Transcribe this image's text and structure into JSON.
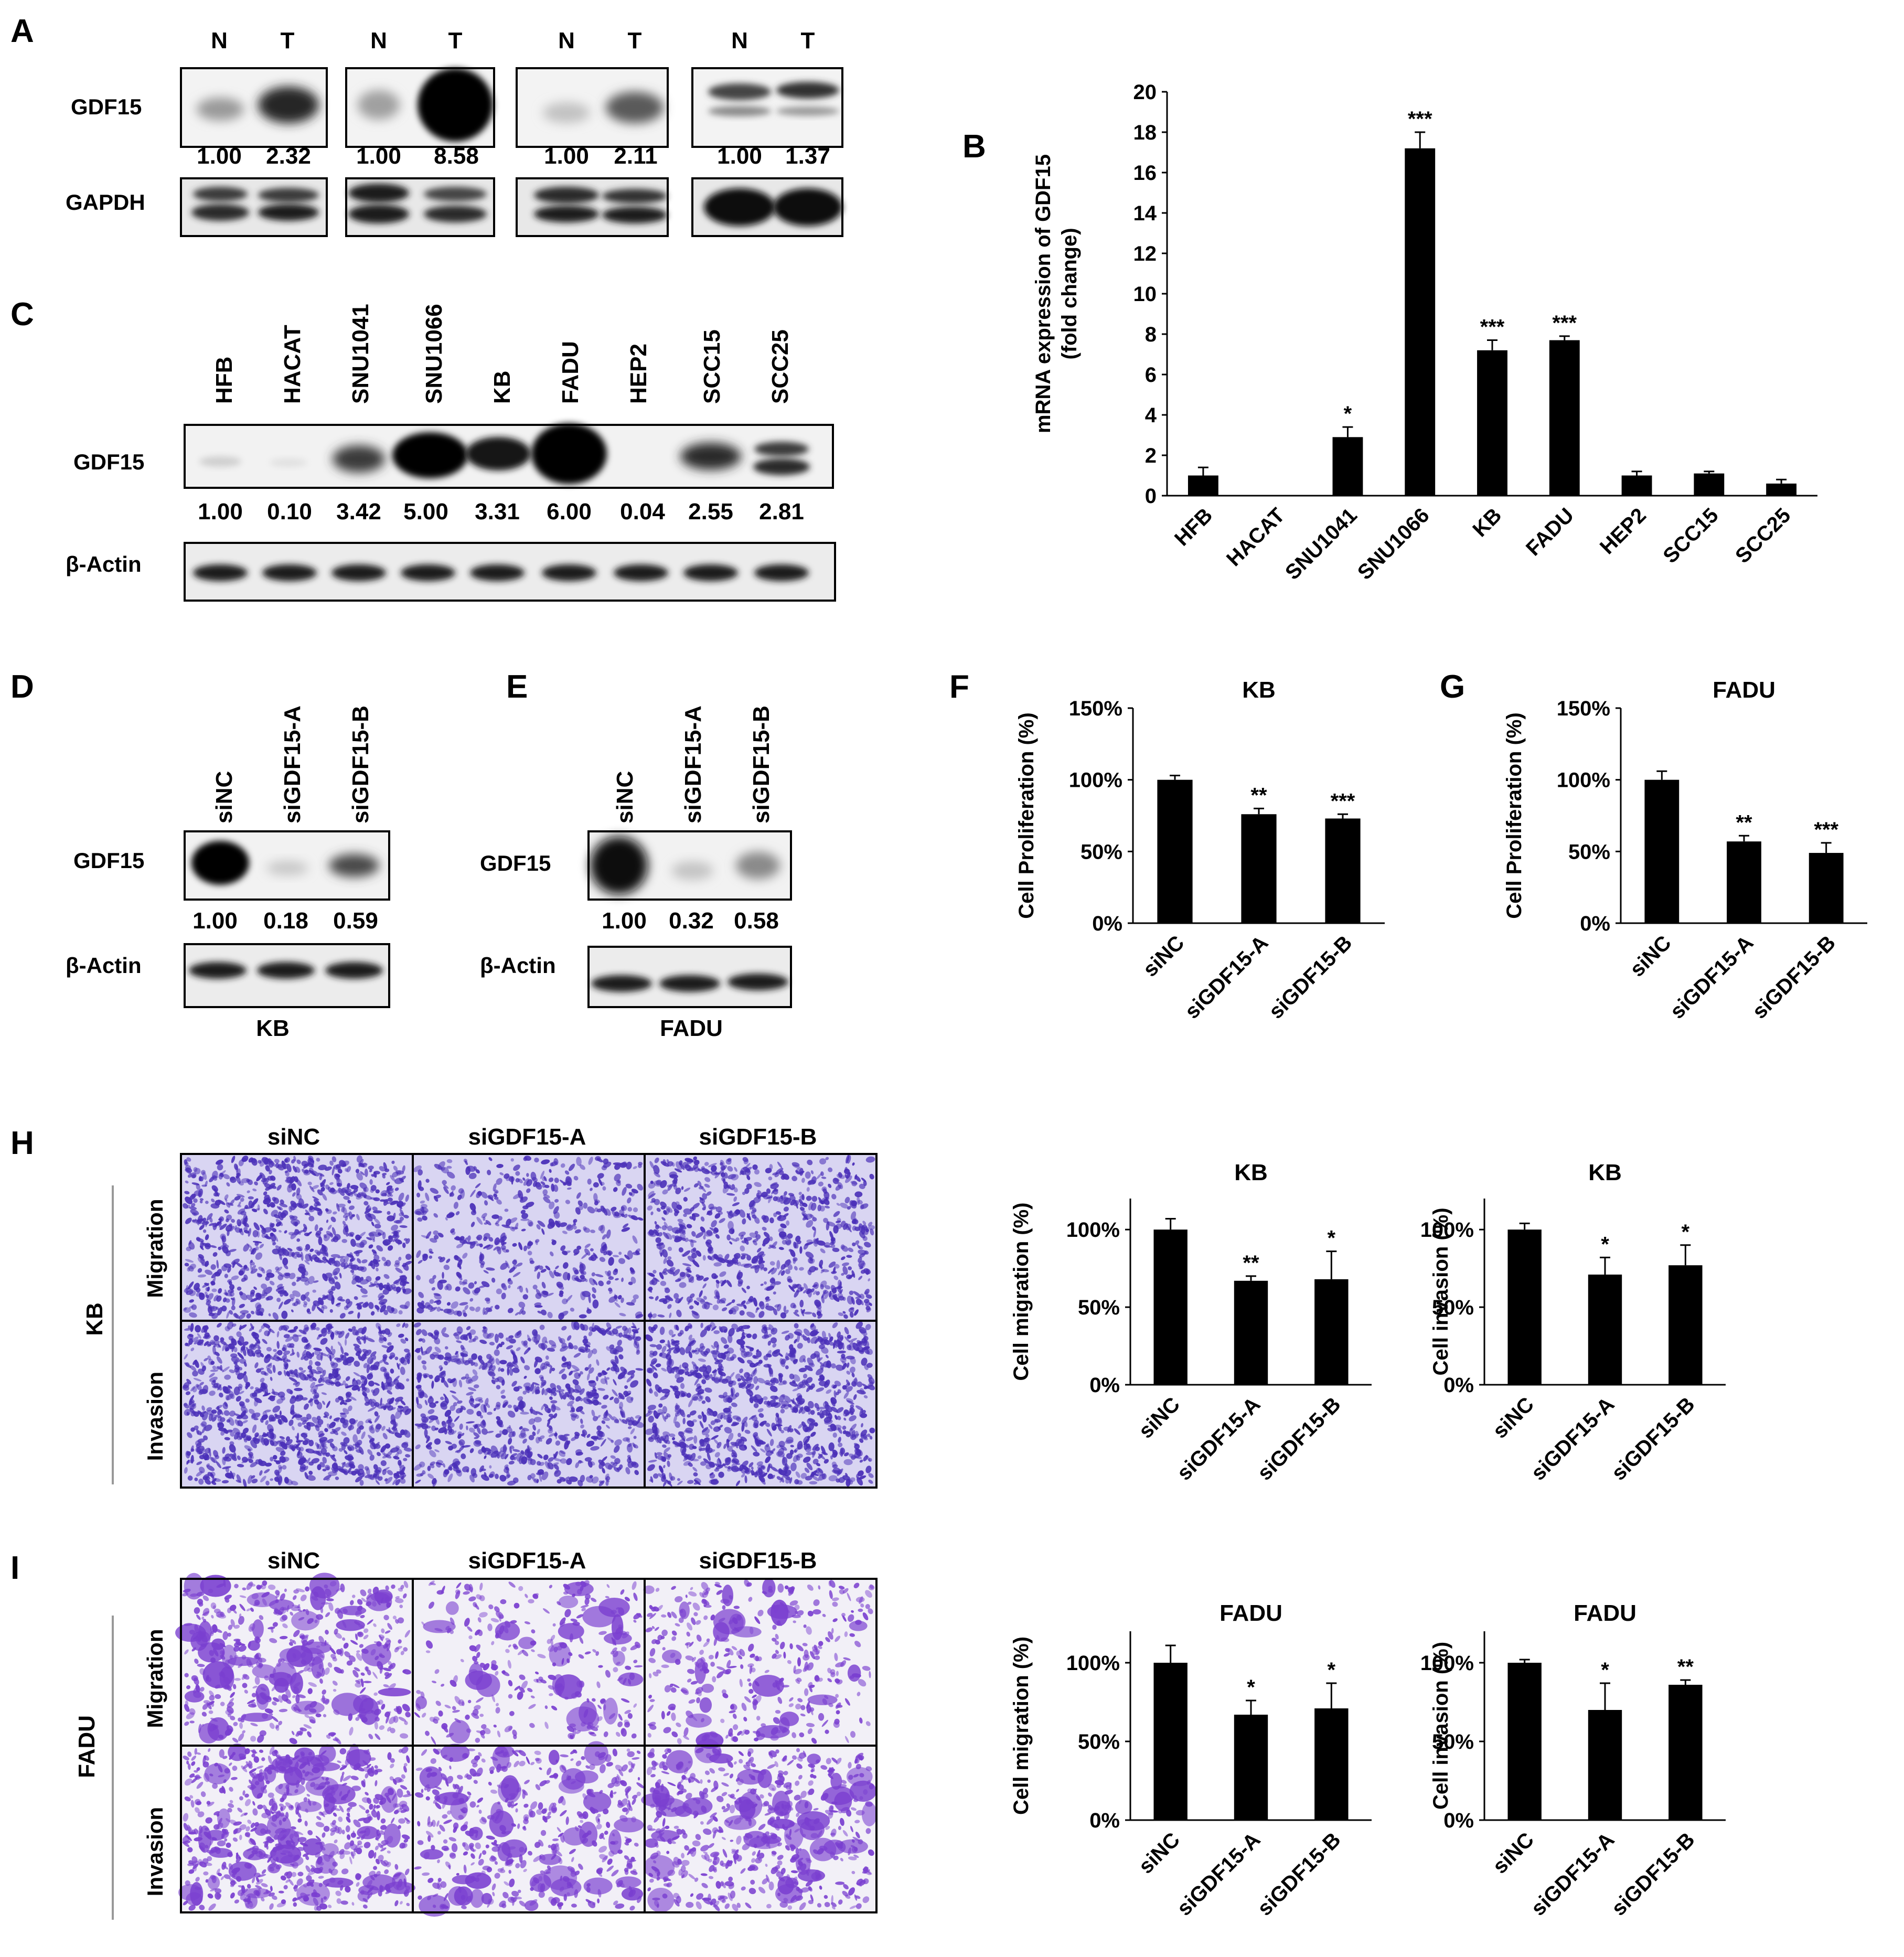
{
  "panels": {
    "A": {
      "letter": "A",
      "col_labels": [
        "N",
        "T"
      ],
      "row_labels": [
        "GDF15",
        "GAPDH"
      ],
      "quant": [
        [
          "1.00",
          "2.32"
        ],
        [
          "1.00",
          "8.58"
        ],
        [
          "1.00",
          "2.11"
        ],
        [
          "1.00",
          "1.37"
        ]
      ]
    },
    "B": {
      "letter": "B"
    },
    "C": {
      "letter": "C",
      "lanes": [
        "HFB",
        "HACAT",
        "SNU1041",
        "SNU1066",
        "KB",
        "FADU",
        "HEP2",
        "SCC15",
        "SCC25"
      ],
      "row_labels": [
        "GDF15",
        "β-Actin"
      ],
      "quant": [
        "1.00",
        "0.10",
        "3.42",
        "5.00",
        "3.31",
        "6.00",
        "0.04",
        "2.55",
        "2.81"
      ]
    },
    "D": {
      "letter": "D",
      "lanes": [
        "siNC",
        "siGDF15-A",
        "siGDF15-B"
      ],
      "row_labels": [
        "GDF15",
        "β-Actin"
      ],
      "quant": [
        "1.00",
        "0.18",
        "0.59"
      ],
      "cell_line": "KB"
    },
    "E": {
      "letter": "E",
      "lanes": [
        "siNC",
        "siGDF15-A",
        "siGDF15-B"
      ],
      "row_labels": [
        "GDF15",
        "β-Actin"
      ],
      "quant": [
        "1.00",
        "0.32",
        "0.58"
      ],
      "cell_line": "FADU"
    },
    "F": {
      "letter": "F"
    },
    "G": {
      "letter": "G"
    },
    "H": {
      "letter": "H",
      "col_labels": [
        "siNC",
        "siGDF15-A",
        "siGDF15-B"
      ],
      "row_labels": [
        "Migration",
        "Invasion"
      ],
      "cell_line": "KB"
    },
    "I": {
      "letter": "I",
      "col_labels": [
        "siNC",
        "siGDF15-A",
        "siGDF15-B"
      ],
      "row_labels": [
        "Migration",
        "Invasion"
      ],
      "cell_line": "FADU"
    }
  },
  "colors": {
    "bar": "#000000",
    "stain_H": "#4a2fb8",
    "stain_I": "#7a3fd0",
    "H_bg": "#d9d5f2",
    "I_bg": "#f2f0f7"
  },
  "chart_data": [
    {
      "id": "B",
      "type": "bar",
      "title": "",
      "ylabel": "mRNA expression of GDF15 (fold change)",
      "xlabel": "",
      "categories": [
        "HFB",
        "HACAT",
        "SNU1041",
        "SNU1066",
        "KB",
        "FADU",
        "HEP2",
        "SCC15",
        "SCC25"
      ],
      "values": [
        1.0,
        0.0,
        2.9,
        17.2,
        7.2,
        7.7,
        1.0,
        1.1,
        0.6
      ],
      "errors": [
        0.4,
        0.0,
        0.5,
        0.8,
        0.5,
        0.2,
        0.2,
        0.1,
        0.2
      ],
      "significance": [
        "",
        "",
        "*",
        "***",
        "***",
        "***",
        "",
        "",
        ""
      ],
      "ylim": [
        0,
        20
      ],
      "yticks": [
        "0",
        "2",
        "4",
        "6",
        "8",
        "10",
        "12",
        "14",
        "16",
        "18",
        "20"
      ]
    },
    {
      "id": "F",
      "type": "bar",
      "title": "KB",
      "ylabel": "Cell Proliferation (%)",
      "xlabel": "",
      "categories": [
        "siNC",
        "siGDF15-A",
        "siGDF15-B"
      ],
      "values": [
        100,
        76,
        73
      ],
      "errors": [
        3,
        4,
        3
      ],
      "significance": [
        "",
        "**",
        "***"
      ],
      "ylim": [
        0,
        150
      ],
      "yticks": [
        "0%",
        "50%",
        "100%",
        "150%"
      ]
    },
    {
      "id": "G",
      "type": "bar",
      "title": "FADU",
      "ylabel": "Cell Proliferation (%)",
      "xlabel": "",
      "categories": [
        "siNC",
        "siGDF15-A",
        "siGDF15-B"
      ],
      "values": [
        100,
        57,
        49
      ],
      "errors": [
        6,
        4,
        7
      ],
      "significance": [
        "",
        "**",
        "***"
      ],
      "ylim": [
        0,
        150
      ],
      "yticks": [
        "0%",
        "50%",
        "100%",
        "150%"
      ]
    },
    {
      "id": "H_mig",
      "type": "bar",
      "title": "KB",
      "ylabel": "Cell migration (%)",
      "xlabel": "",
      "categories": [
        "siNC",
        "siGDF15-A",
        "siGDF15-B"
      ],
      "values": [
        100,
        67,
        68
      ],
      "errors": [
        7,
        3,
        18
      ],
      "significance": [
        "",
        "**",
        "*"
      ],
      "ylim": [
        0,
        120
      ],
      "yticks": [
        "0%",
        "50%",
        "100%"
      ]
    },
    {
      "id": "H_inv",
      "type": "bar",
      "title": "KB",
      "ylabel": "Cell invasion (%)",
      "xlabel": "",
      "categories": [
        "siNC",
        "siGDF15-A",
        "siGDF15-B"
      ],
      "values": [
        100,
        71,
        77
      ],
      "errors": [
        4,
        11,
        13
      ],
      "significance": [
        "",
        "*",
        "*"
      ],
      "ylim": [
        0,
        120
      ],
      "yticks": [
        "0%",
        "50%",
        "100%"
      ]
    },
    {
      "id": "I_mig",
      "type": "bar",
      "title": "FADU",
      "ylabel": "Cell migration (%)",
      "xlabel": "",
      "categories": [
        "siNC",
        "siGDF15-A",
        "siGDF15-B"
      ],
      "values": [
        100,
        67,
        71
      ],
      "errors": [
        11,
        9,
        16
      ],
      "significance": [
        "",
        "*",
        "*"
      ],
      "ylim": [
        0,
        120
      ],
      "yticks": [
        "0%",
        "50%",
        "100%"
      ]
    },
    {
      "id": "I_inv",
      "type": "bar",
      "title": "FADU",
      "ylabel": "Cell invasion (%)",
      "xlabel": "",
      "categories": [
        "siNC",
        "siGDF15-A",
        "siGDF15-B"
      ],
      "values": [
        100,
        70,
        86
      ],
      "errors": [
        2,
        17,
        3
      ],
      "significance": [
        "",
        "*",
        "**"
      ],
      "ylim": [
        0,
        120
      ],
      "yticks": [
        "0%",
        "50%",
        "100%"
      ]
    }
  ]
}
